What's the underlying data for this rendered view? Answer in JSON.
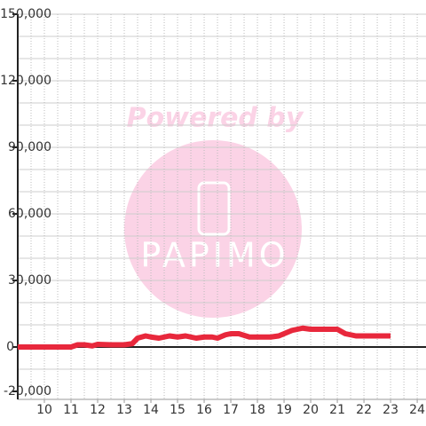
{
  "chart_data": {
    "type": "line",
    "watermark_top": "Powered by",
    "watermark_logo": "PAPIMO",
    "x": [
      9,
      9.5,
      10,
      10.5,
      11,
      11.25,
      11.5,
      11.8,
      12,
      12.5,
      13,
      13.3,
      13.5,
      13.8,
      14,
      14.3,
      14.7,
      15,
      15.3,
      15.7,
      16,
      16.3,
      16.5,
      16.8,
      17,
      17.3,
      17.7,
      18,
      18.5,
      18.8,
      19,
      19.3,
      19.7,
      20,
      20.5,
      21,
      21.3,
      21.7,
      22,
      22.5,
      23
    ],
    "series": [
      {
        "color": "#e8283c",
        "values": [
          0,
          0,
          0,
          0,
          0,
          1000,
          1000,
          500,
          1200,
          1000,
          1000,
          1500,
          4000,
          5000,
          4500,
          4000,
          5000,
          4500,
          5000,
          4000,
          4500,
          4500,
          4000,
          5500,
          6000,
          6000,
          4500,
          4500,
          4500,
          5000,
          6000,
          7500,
          8500,
          8000,
          8000,
          8000,
          6000,
          5000,
          5000,
          5000,
          5000
        ]
      }
    ],
    "xlim": [
      9,
      24.33
    ],
    "xticks": [
      10,
      11,
      12,
      13,
      14,
      15,
      16,
      17,
      18,
      19,
      20,
      21,
      22,
      23,
      24
    ],
    "xgrid": [
      9.5,
      10,
      10.5,
      11,
      11.5,
      12,
      12.5,
      13,
      13.5,
      14,
      14.5,
      15,
      15.5,
      16,
      16.5,
      17,
      17.5,
      18,
      18.5,
      19,
      19.5,
      20,
      20.5,
      21,
      21.5,
      22,
      22.5,
      23,
      23.5,
      24
    ],
    "ylim": [
      -20000,
      150000
    ],
    "yticks": [
      {
        "value": -20000,
        "label": "-20,000"
      },
      0,
      {
        "value": 30000,
        "label": "30,000"
      },
      {
        "value": 60000,
        "label": "60,000"
      },
      {
        "value": 90000,
        "label": "90,000"
      },
      {
        "value": 120000,
        "label": "120,000"
      },
      {
        "value": 150000,
        "label": "150,000"
      }
    ],
    "ygrid": [
      -10000,
      10000,
      20000,
      30000,
      40000,
      50000,
      60000,
      70000,
      80000,
      90000,
      100000,
      110000,
      120000,
      130000,
      140000,
      150000
    ],
    "grid": true
  }
}
